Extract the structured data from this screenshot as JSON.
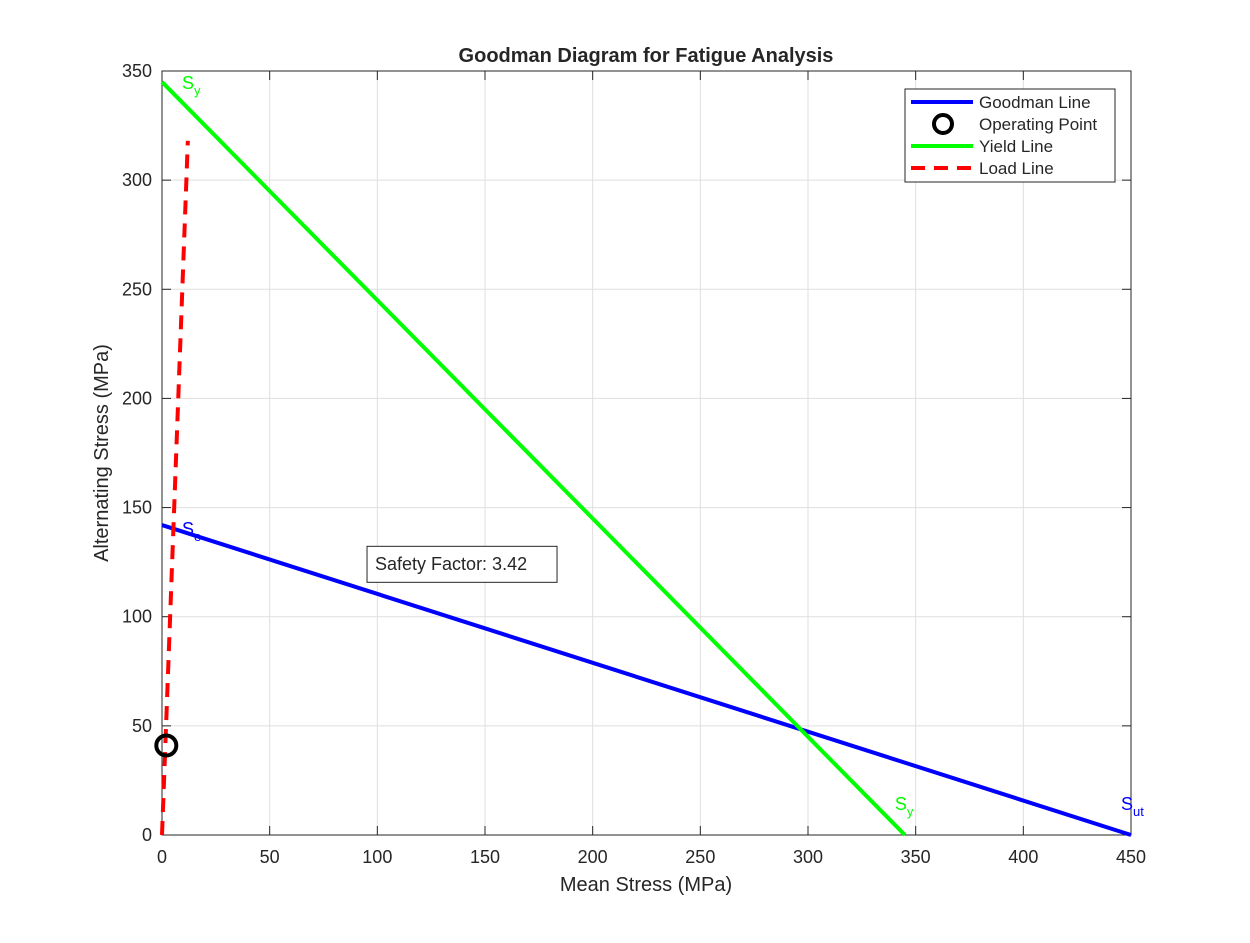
{
  "chart_data": {
    "type": "line",
    "title": "Goodman Diagram for Fatigue Analysis",
    "xlabel": "Mean Stress (MPa)",
    "ylabel": "Alternating Stress (MPa)",
    "xlim": [
      0,
      450
    ],
    "ylim": [
      0,
      350
    ],
    "xticks": [
      0,
      50,
      100,
      150,
      200,
      250,
      300,
      350,
      400,
      450
    ],
    "yticks": [
      0,
      50,
      100,
      150,
      200,
      250,
      300,
      350
    ],
    "grid": true,
    "legend_position": "top-right",
    "series": [
      {
        "name": "Goodman Line",
        "style": "solid",
        "color": "#0000ff",
        "x": [
          0,
          450
        ],
        "y": [
          142,
          0
        ]
      },
      {
        "name": "Operating Point",
        "style": "marker-circle",
        "color": "#000000",
        "x": [
          2
        ],
        "y": [
          41
        ]
      },
      {
        "name": "Yield Line",
        "style": "solid",
        "color": "#00ff00",
        "x": [
          0,
          345
        ],
        "y": [
          345,
          0
        ]
      },
      {
        "name": "Load Line",
        "style": "dashed",
        "color": "#ff0000",
        "x": [
          0,
          12
        ],
        "y": [
          0,
          318
        ]
      }
    ],
    "annotations": [
      {
        "base": "S",
        "sub": "y",
        "x": 345,
        "y": 345,
        "color": "#00ff00",
        "anchor": "y-intercept"
      },
      {
        "base": "S",
        "sub": "e",
        "x": 0,
        "y": 142,
        "color": "#0000ff",
        "anchor": "y-intercept"
      },
      {
        "base": "S",
        "sub": "y",
        "x": 345,
        "y": 0,
        "color": "#00ff00",
        "anchor": "x-intercept"
      },
      {
        "base": "S",
        "sub": "ut",
        "x": 450,
        "y": 0,
        "color": "#0000ff",
        "anchor": "x-intercept"
      }
    ],
    "text_box": {
      "text": "Safety Factor: 3.42",
      "x": 98,
      "y": 124
    }
  }
}
